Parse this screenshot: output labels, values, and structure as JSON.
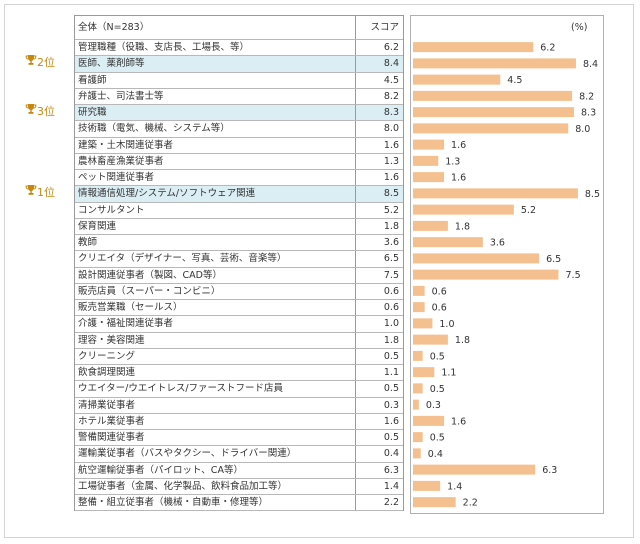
{
  "table": {
    "header_category": "全体（N=283）",
    "header_score": "スコア"
  },
  "unit_label": "(%)",
  "ranks": [
    {
      "label": "2位",
      "row": 1
    },
    {
      "label": "3位",
      "row": 4
    },
    {
      "label": "1位",
      "row": 9
    }
  ],
  "bar_color": "#f5c08f",
  "highlight_color": "#dbeef4",
  "chart_data": {
    "type": "bar",
    "orientation": "horizontal",
    "unit": "%",
    "xlim": [
      0,
      9
    ],
    "categories": [
      "管理職種（役職、支店長、工場長、等）",
      "医師、薬剤師等",
      "看護師",
      "弁護士、司法書士等",
      "研究職",
      "技術職（電気、機械、システム等）",
      "建築・土木関連従事者",
      "農林畜産漁業従事者",
      "ペット関連従事者",
      "情報通信処理/システム/ソフトウェア関連",
      "コンサルタント",
      "保育関連",
      "教師",
      "クリエイタ（デザイナー、写真、芸術、音楽等）",
      "設計関連従事者（製図、CAD等）",
      "販売店員（スーパー・コンビニ）",
      "販売営業職（セールス）",
      "介護・福祉関連従事者",
      "理容・美容関連",
      "クリーニング",
      "飲食調理関連",
      "ウエイター/ウエイトレス/ファーストフード店員",
      "清掃業従事者",
      "ホテル業従事者",
      "警備関連従事者",
      "運輸業従事者（バスやタクシー、ドライバー関連）",
      "航空運輸従事者（パイロット、CA等）",
      "工場従事者（金属、化学製品、飲料食品加工等）",
      "整備・組立従事者（機械・自動車・修理等）"
    ],
    "values": [
      6.2,
      8.4,
      4.5,
      8.2,
      8.3,
      8.0,
      1.6,
      1.3,
      1.6,
      8.5,
      5.2,
      1.8,
      3.6,
      6.5,
      7.5,
      0.6,
      0.6,
      1.0,
      1.8,
      0.5,
      1.1,
      0.5,
      0.3,
      1.6,
      0.5,
      0.4,
      6.3,
      1.4,
      2.2
    ],
    "value_labels": [
      "6.2",
      "8.4",
      "4.5",
      "8.2",
      "8.3",
      "8.0",
      "1.6",
      "1.3",
      "1.6",
      "8.5",
      "5.2",
      "1.8",
      "3.6",
      "6.5",
      "7.5",
      "0.6",
      "0.6",
      "1.0",
      "1.8",
      "0.5",
      "1.1",
      "0.5",
      "0.3",
      "1.6",
      "0.5",
      "0.4",
      "6.3",
      "1.4",
      "2.2"
    ],
    "highlighted_rows": [
      1,
      4,
      9
    ]
  }
}
